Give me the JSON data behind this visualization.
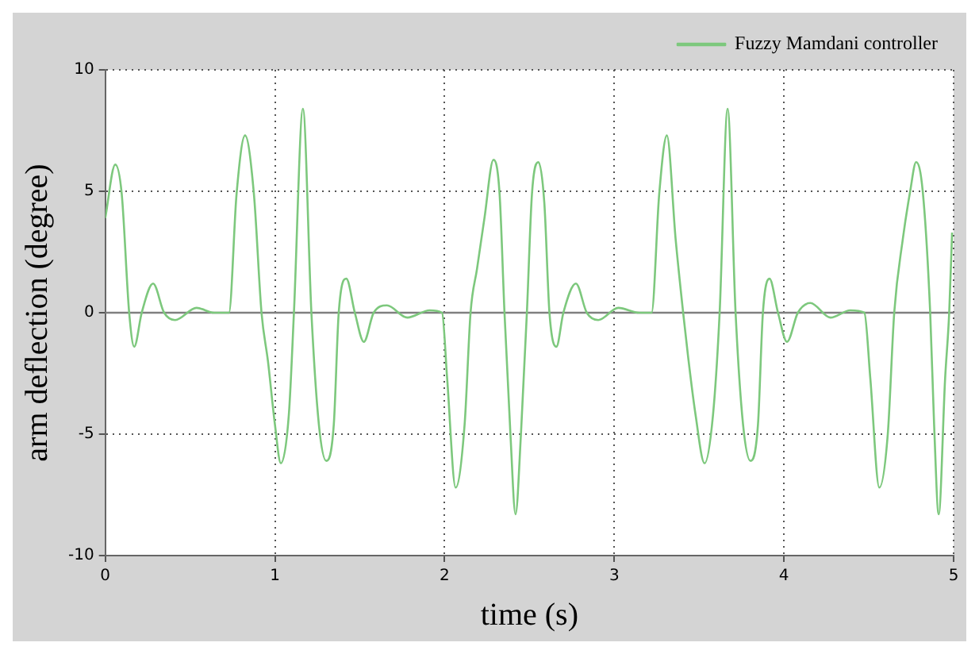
{
  "chart_data": {
    "type": "line",
    "xlabel": "time (s)",
    "ylabel": "arm deflection (degree)",
    "xlim": [
      0,
      5
    ],
    "xticks": [
      0,
      1,
      2,
      3,
      4,
      5
    ],
    "ylim": [
      -10,
      10
    ],
    "yticks": [
      -10,
      -5,
      0,
      5,
      10
    ],
    "grid": true,
    "legend": "top right",
    "marker": "none",
    "line_style": "solid",
    "ref_lines": [
      {
        "axis": "y",
        "value": 0,
        "color": "#808080"
      }
    ],
    "series": [
      {
        "name": "Fuzzy Mamdani controller",
        "color": "#7dc87d",
        "x": [
          0,
          0.059,
          0.097,
          0.141,
          0.171,
          0.215,
          0.282,
          0.347,
          0.412,
          0.538,
          0.641,
          0.729,
          0.774,
          0.824,
          0.876,
          0.921,
          0.959,
          1.0,
          1.035,
          1.082,
          1.112,
          1.165,
          1.215,
          1.259,
          1.303,
          1.347,
          1.376,
          1.421,
          1.471,
          1.524,
          1.582,
          1.66,
          1.78,
          1.912,
          1.985,
          2.015,
          2.065,
          2.118,
          2.153,
          2.191,
          2.235,
          2.288,
          2.324,
          2.353,
          2.388,
          2.418,
          2.45,
          2.485,
          2.515,
          2.553,
          2.588,
          2.618,
          2.659,
          2.7,
          2.774,
          2.838,
          2.906,
          3.024,
          3.147,
          3.22,
          3.265,
          3.31,
          3.362,
          3.406,
          3.435,
          3.479,
          3.532,
          3.582,
          3.621,
          3.668,
          3.715,
          3.759,
          3.803,
          3.847,
          3.876,
          3.915,
          3.965,
          4.018,
          4.082,
          4.156,
          4.274,
          4.391,
          4.474,
          4.509,
          4.562,
          4.612,
          4.65,
          4.7,
          4.744,
          4.779,
          4.818,
          4.862,
          4.885,
          4.912,
          4.95,
          4.974,
          4.991
        ],
        "values": [
          3.9,
          6.1,
          4.9,
          0,
          -1.4,
          0,
          1.2,
          0,
          -0.3,
          0.2,
          0,
          0,
          4.9,
          7.3,
          4.9,
          0,
          -2.0,
          -4.6,
          -6.2,
          -4.2,
          0,
          8.4,
          0,
          -4.6,
          -6.1,
          -4.6,
          0,
          1.4,
          0,
          -1.2,
          0,
          0.3,
          -0.2,
          0.1,
          0,
          -2.7,
          -7.2,
          -4.6,
          0,
          1.8,
          3.9,
          6.3,
          4.9,
          0,
          -5.0,
          -8.3,
          -5.0,
          0,
          4.9,
          6.2,
          4.5,
          0,
          -1.4,
          0,
          1.2,
          0,
          -0.3,
          0.2,
          0,
          0,
          4.9,
          7.3,
          3.0,
          0,
          -1.8,
          -4.2,
          -6.2,
          -4.2,
          0,
          8.4,
          0,
          -4.6,
          -6.1,
          -4.6,
          0,
          1.4,
          0,
          -1.2,
          0,
          0.4,
          -0.2,
          0.1,
          0,
          -2.7,
          -7.2,
          -5.0,
          0,
          3.0,
          5.0,
          6.2,
          5.0,
          0,
          -4.6,
          -8.3,
          -2.7,
          0,
          3.3
        ]
      }
    ]
  }
}
